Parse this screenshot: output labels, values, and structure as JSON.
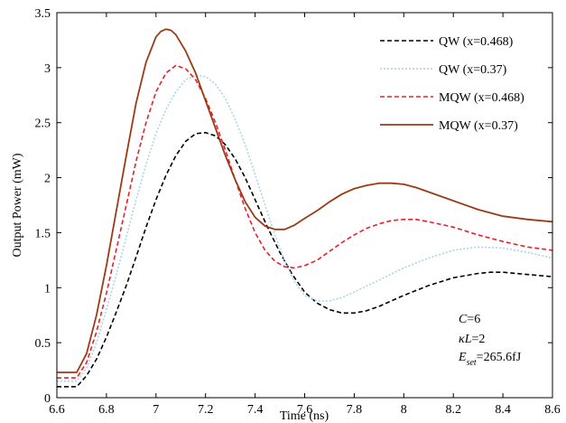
{
  "chart_data": {
    "type": "line",
    "xlabel": "Time (ns)",
    "ylabel": "Output Power (mW)",
    "xlim": [
      6.6,
      8.6
    ],
    "ylim": [
      0,
      3.5
    ],
    "xticks": [
      "6.6",
      "6.8",
      "7",
      "7.2",
      "7.4",
      "7.6",
      "7.8",
      "8",
      "8.2",
      "8.4",
      "8.6"
    ],
    "yticks": [
      "0",
      "0.5",
      "1",
      "1.5",
      "2",
      "2.5",
      "3",
      "3.5"
    ],
    "grid": false,
    "legend_position": "top-right",
    "annotations": {
      "c_label": "C",
      "c_value": "=6",
      "kl_label": "κL",
      "kl_value": "=2",
      "e_main": "E",
      "e_sub": "set",
      "e_value": "=265.6fJ"
    },
    "series": [
      {
        "name": "QW (x=0.468)",
        "color": "#000000",
        "dash": "dashed",
        "x": [
          6.6,
          6.64,
          6.68,
          6.72,
          6.76,
          6.8,
          6.84,
          6.88,
          6.92,
          6.96,
          7.0,
          7.04,
          7.08,
          7.12,
          7.16,
          7.2,
          7.24,
          7.28,
          7.32,
          7.36,
          7.4,
          7.45,
          7.5,
          7.55,
          7.6,
          7.65,
          7.7,
          7.75,
          7.8,
          7.85,
          7.9,
          7.95,
          8.0,
          8.1,
          8.2,
          8.3,
          8.35,
          8.4,
          8.5,
          8.6
        ],
        "y": [
          0.1,
          0.1,
          0.1,
          0.2,
          0.35,
          0.55,
          0.78,
          1.02,
          1.28,
          1.55,
          1.8,
          2.02,
          2.2,
          2.33,
          2.4,
          2.41,
          2.38,
          2.3,
          2.17,
          2.0,
          1.8,
          1.55,
          1.32,
          1.12,
          0.96,
          0.86,
          0.8,
          0.77,
          0.77,
          0.79,
          0.83,
          0.88,
          0.93,
          1.02,
          1.09,
          1.13,
          1.14,
          1.14,
          1.12,
          1.1
        ]
      },
      {
        "name": "QW (x=0.37)",
        "color": "#a8d4ec",
        "dash": "dotted",
        "x": [
          6.6,
          6.64,
          6.68,
          6.72,
          6.76,
          6.8,
          6.84,
          6.88,
          6.92,
          6.96,
          7.0,
          7.04,
          7.08,
          7.12,
          7.16,
          7.2,
          7.24,
          7.28,
          7.32,
          7.36,
          7.4,
          7.44,
          7.48,
          7.52,
          7.56,
          7.6,
          7.65,
          7.7,
          7.75,
          7.8,
          7.9,
          8.0,
          8.1,
          8.2,
          8.3,
          8.4,
          8.5,
          8.6
        ],
        "y": [
          0.15,
          0.15,
          0.15,
          0.27,
          0.5,
          0.8,
          1.12,
          1.46,
          1.8,
          2.12,
          2.4,
          2.62,
          2.78,
          2.89,
          2.93,
          2.92,
          2.85,
          2.72,
          2.53,
          2.3,
          2.03,
          1.75,
          1.48,
          1.24,
          1.05,
          0.93,
          0.88,
          0.88,
          0.91,
          0.96,
          1.07,
          1.18,
          1.27,
          1.34,
          1.37,
          1.36,
          1.32,
          1.27
        ]
      },
      {
        "name": "MQW (x=0.468)",
        "color": "#e8202a",
        "dash": "dashed",
        "x": [
          6.6,
          6.64,
          6.68,
          6.72,
          6.76,
          6.8,
          6.84,
          6.88,
          6.92,
          6.96,
          7.0,
          7.04,
          7.08,
          7.12,
          7.16,
          7.2,
          7.24,
          7.28,
          7.32,
          7.36,
          7.4,
          7.44,
          7.48,
          7.52,
          7.56,
          7.6,
          7.65,
          7.7,
          7.75,
          7.8,
          7.85,
          7.9,
          7.95,
          8.0,
          8.05,
          8.1,
          8.2,
          8.3,
          8.4,
          8.5,
          8.6
        ],
        "y": [
          0.18,
          0.18,
          0.18,
          0.32,
          0.6,
          0.95,
          1.35,
          1.75,
          2.15,
          2.5,
          2.78,
          2.95,
          3.02,
          2.99,
          2.89,
          2.72,
          2.5,
          2.25,
          1.98,
          1.72,
          1.5,
          1.34,
          1.24,
          1.19,
          1.18,
          1.2,
          1.25,
          1.33,
          1.41,
          1.48,
          1.54,
          1.58,
          1.61,
          1.62,
          1.62,
          1.6,
          1.55,
          1.48,
          1.42,
          1.37,
          1.34
        ]
      },
      {
        "name": "MQW (x=0.37)",
        "color": "#9b3a17",
        "dash": "solid",
        "x": [
          6.6,
          6.64,
          6.68,
          6.72,
          6.76,
          6.8,
          6.84,
          6.88,
          6.92,
          6.96,
          7.0,
          7.02,
          7.04,
          7.06,
          7.08,
          7.12,
          7.16,
          7.2,
          7.24,
          7.28,
          7.32,
          7.36,
          7.4,
          7.44,
          7.48,
          7.52,
          7.56,
          7.6,
          7.65,
          7.7,
          7.75,
          7.8,
          7.85,
          7.9,
          7.95,
          8.0,
          8.05,
          8.1,
          8.2,
          8.3,
          8.4,
          8.5,
          8.6
        ],
        "y": [
          0.23,
          0.23,
          0.23,
          0.4,
          0.75,
          1.2,
          1.7,
          2.2,
          2.68,
          3.05,
          3.28,
          3.33,
          3.35,
          3.34,
          3.3,
          3.15,
          2.95,
          2.7,
          2.45,
          2.2,
          1.98,
          1.78,
          1.64,
          1.56,
          1.53,
          1.53,
          1.57,
          1.63,
          1.7,
          1.78,
          1.85,
          1.9,
          1.93,
          1.95,
          1.95,
          1.94,
          1.91,
          1.87,
          1.79,
          1.71,
          1.65,
          1.62,
          1.6
        ]
      }
    ]
  }
}
